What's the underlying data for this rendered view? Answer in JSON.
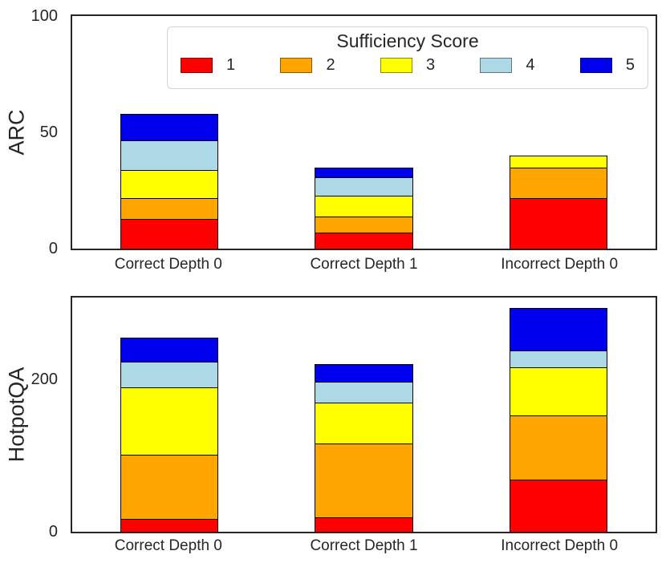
{
  "figure": {
    "background": "#ffffff",
    "text_color": "#262626",
    "spine_color": "#262626",
    "bar_edge_color": "#000000"
  },
  "legend": {
    "title": "Sufficiency Score",
    "entries": [
      {
        "label": "1",
        "color": "#ff0000"
      },
      {
        "label": "2",
        "color": "#ffa500"
      },
      {
        "label": "3",
        "color": "#ffff00"
      },
      {
        "label": "4",
        "color": "#add8e6"
      },
      {
        "label": "5",
        "color": "#0000ee"
      }
    ]
  },
  "chart_data": [
    {
      "type": "bar",
      "stacked": true,
      "ylabel": "ARC",
      "categories": [
        "Correct Depth 0",
        "Correct Depth 1",
        "Incorrect Depth 0"
      ],
      "series": [
        {
          "name": "1",
          "color": "#ff0000",
          "values": [
            13,
            7,
            22
          ]
        },
        {
          "name": "2",
          "color": "#ffa500",
          "values": [
            9,
            7,
            13
          ]
        },
        {
          "name": "3",
          "color": "#ffff00",
          "values": [
            12,
            9,
            5
          ]
        },
        {
          "name": "4",
          "color": "#add8e6",
          "values": [
            13,
            8,
            0
          ]
        },
        {
          "name": "5",
          "color": "#0000ee",
          "values": [
            11,
            4,
            0
          ]
        }
      ],
      "totals": [
        58,
        35,
        40
      ],
      "ylim": [
        0,
        100
      ],
      "yticks": [
        0,
        50,
        100
      ],
      "grid": false,
      "legend_position": "upper center"
    },
    {
      "type": "bar",
      "stacked": true,
      "ylabel": "HotpotQA",
      "categories": [
        "Correct Depth 0",
        "Correct Depth 1",
        "Incorrect Depth 0"
      ],
      "series": [
        {
          "name": "1",
          "color": "#ff0000",
          "values": [
            17,
            19,
            69
          ]
        },
        {
          "name": "2",
          "color": "#ffa500",
          "values": [
            85,
            98,
            85
          ]
        },
        {
          "name": "3",
          "color": "#ffff00",
          "values": [
            89,
            54,
            63
          ]
        },
        {
          "name": "4",
          "color": "#add8e6",
          "values": [
            34,
            27,
            22
          ]
        },
        {
          "name": "5",
          "color": "#0000ee",
          "values": [
            30,
            22,
            55
          ]
        }
      ],
      "totals": [
        255,
        220,
        294
      ],
      "ylim": [
        0,
        308
      ],
      "yticks": [
        0,
        200
      ],
      "grid": false
    }
  ]
}
